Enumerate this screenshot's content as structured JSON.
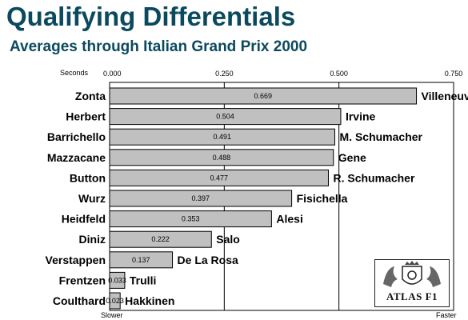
{
  "title": "Qualifying Differentials",
  "subtitle": "Averages through Italian Grand Prix 2000",
  "axis": {
    "unit_label": "Seconds",
    "slower_label": "Slower",
    "faster_label": "Faster"
  },
  "logo": {
    "text": "ATLAS F1"
  },
  "chart_data": {
    "type": "bar",
    "orientation": "horizontal",
    "xlim": [
      0,
      0.75
    ],
    "ticks": [
      "0.000",
      "0.250",
      "0.500",
      "0.750"
    ],
    "tick_values": [
      0,
      0.25,
      0.5,
      0.75
    ],
    "grid": true,
    "pairs": [
      {
        "slower": "Zonta",
        "faster": "Villeneuve",
        "value": 0.669,
        "label": "0.669"
      },
      {
        "slower": "Herbert",
        "faster": "Irvine",
        "value": 0.504,
        "label": "0.504"
      },
      {
        "slower": "Barrichello",
        "faster": "M. Schumacher",
        "value": 0.491,
        "label": "0.491"
      },
      {
        "slower": "Mazzacane",
        "faster": "Gene",
        "value": 0.488,
        "label": "0.488"
      },
      {
        "slower": "Button",
        "faster": "R. Schumacher",
        "value": 0.477,
        "label": "0.477"
      },
      {
        "slower": "Wurz",
        "faster": "Fisichella",
        "value": 0.397,
        "label": "0.397"
      },
      {
        "slower": "Heidfeld",
        "faster": "Alesi",
        "value": 0.353,
        "label": "0.353"
      },
      {
        "slower": "Diniz",
        "faster": "Salo",
        "value": 0.222,
        "label": "0.222"
      },
      {
        "slower": "Verstappen",
        "faster": "De La Rosa",
        "value": 0.137,
        "label": "0.137"
      },
      {
        "slower": "Frentzen",
        "faster": "Trulli",
        "value": 0.033,
        "label": "0.033"
      },
      {
        "slower": "Coulthard",
        "faster": "Hakkinen",
        "value": 0.023,
        "label": "0.023"
      }
    ],
    "colors": {
      "bar": "#c0c0c0",
      "bar_stroke": "#000000",
      "title": "#0b4a5e"
    }
  }
}
